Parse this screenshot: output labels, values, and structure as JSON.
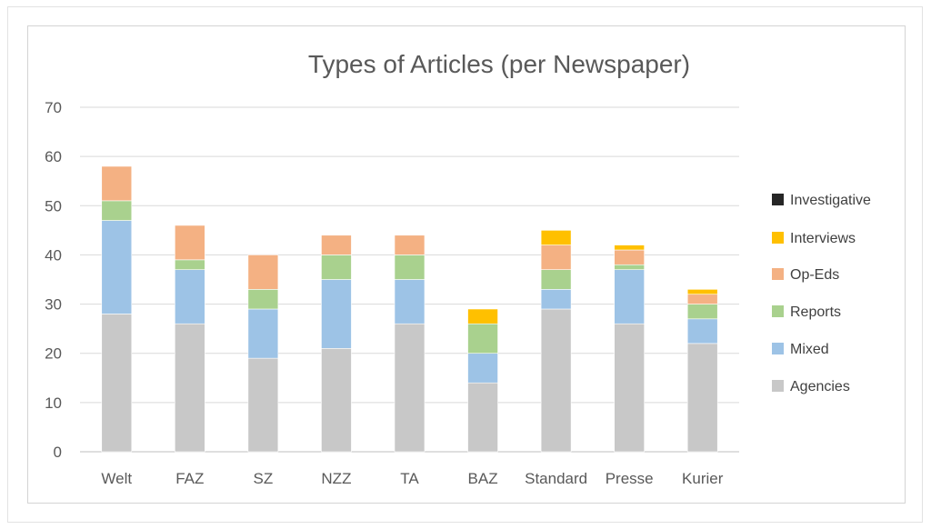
{
  "chart_data": {
    "type": "bar",
    "stacked": true,
    "title": "Types of Articles (per Newspaper)",
    "xlabel": "",
    "ylabel": "",
    "ylim": [
      0,
      70
    ],
    "yticks": [
      0,
      10,
      20,
      30,
      40,
      50,
      60,
      70
    ],
    "grid": true,
    "legend_position": "right",
    "categories": [
      "Welt",
      "FAZ",
      "SZ",
      "NZZ",
      "TA",
      "BAZ",
      "Standard",
      "Presse",
      "Kurier"
    ],
    "series": [
      {
        "name": "Agencies",
        "color": "#c8c8c8",
        "values": [
          28,
          26,
          19,
          21,
          26,
          14,
          29,
          26,
          22
        ]
      },
      {
        "name": "Mixed",
        "color": "#9dc3e6",
        "values": [
          19,
          11,
          10,
          14,
          9,
          6,
          4,
          11,
          5
        ]
      },
      {
        "name": "Reports",
        "color": "#a9d18e",
        "values": [
          4,
          2,
          4,
          5,
          5,
          6,
          4,
          1,
          3
        ]
      },
      {
        "name": "Op-Eds",
        "color": "#f4b183",
        "values": [
          7,
          7,
          7,
          4,
          4,
          0,
          5,
          3,
          2
        ]
      },
      {
        "name": "Interviews",
        "color": "#ffc000",
        "values": [
          0,
          0,
          0,
          0,
          0,
          3,
          3,
          1,
          1
        ]
      },
      {
        "name": "Investigative",
        "color": "#262626",
        "values": [
          0,
          0,
          0,
          0,
          0,
          0,
          0,
          0,
          0
        ]
      }
    ]
  }
}
